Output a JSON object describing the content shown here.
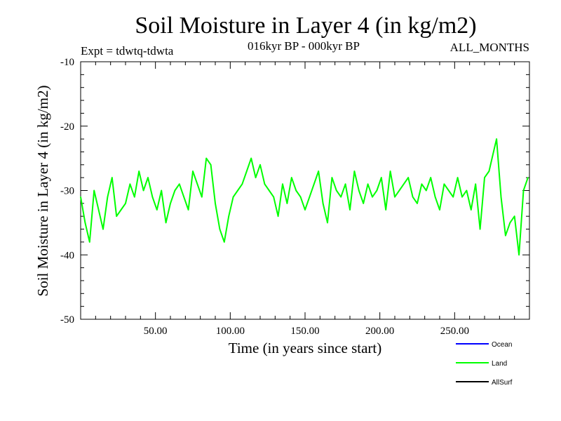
{
  "chart_data": {
    "type": "line",
    "title": "Soil Moisture in Layer 4 (in kg/m2)",
    "subtitle": "016kyr BP - 000kyr BP",
    "experiment": "Expt = tdwtq-tdwta",
    "months": "ALL_MONTHS",
    "xlabel": "Time (in years since start)",
    "ylabel": "Soil Moisture in Layer 4 (in kg/m2)",
    "xlim": [
      0,
      300
    ],
    "ylim": [
      -50,
      -10
    ],
    "x_ticks": [
      {
        "value": 50,
        "label": "50.00"
      },
      {
        "value": 100,
        "label": "100.00"
      },
      {
        "value": 150,
        "label": "150.00"
      },
      {
        "value": 200,
        "label": "200.00"
      },
      {
        "value": 250,
        "label": "250.00"
      }
    ],
    "y_ticks": [
      {
        "value": -10,
        "label": "-10"
      },
      {
        "value": -20,
        "label": "-20"
      },
      {
        "value": -30,
        "label": "-30"
      },
      {
        "value": -40,
        "label": "-40"
      },
      {
        "value": -50,
        "label": "-50"
      }
    ],
    "legend": [
      {
        "name": "Ocean",
        "color": "#0000ff"
      },
      {
        "name": "Land",
        "color": "#00ff00"
      },
      {
        "name": "AllSurf",
        "color": "#000000"
      }
    ],
    "series": [
      {
        "name": "Land",
        "color": "#00ff00",
        "x": [
          0,
          3,
          6,
          9,
          12,
          15,
          18,
          21,
          24,
          27,
          30,
          33,
          36,
          39,
          42,
          45,
          48,
          51,
          54,
          57,
          60,
          63,
          66,
          69,
          72,
          75,
          78,
          81,
          84,
          87,
          90,
          93,
          96,
          99,
          102,
          105,
          108,
          111,
          114,
          117,
          120,
          123,
          126,
          129,
          132,
          135,
          138,
          141,
          144,
          147,
          150,
          153,
          156,
          159,
          162,
          165,
          168,
          171,
          174,
          177,
          180,
          183,
          186,
          189,
          192,
          195,
          198,
          201,
          204,
          207,
          210,
          213,
          216,
          219,
          222,
          225,
          228,
          231,
          234,
          237,
          240,
          243,
          246,
          249,
          252,
          255,
          258,
          261,
          264,
          267,
          270,
          273,
          276,
          278,
          281,
          284,
          287,
          290,
          293,
          296,
          299
        ],
        "values": [
          -31,
          -35,
          -38,
          -30,
          -33,
          -36,
          -31,
          -28,
          -34,
          -33,
          -32,
          -29,
          -31,
          -27,
          -30,
          -28,
          -31,
          -33,
          -30,
          -35,
          -32,
          -30,
          -29,
          -31,
          -33,
          -27,
          -29,
          -31,
          -25,
          -26,
          -32,
          -36,
          -38,
          -34,
          -31,
          -30,
          -29,
          -27,
          -25,
          -28,
          -26,
          -29,
          -30,
          -31,
          -34,
          -29,
          -32,
          -28,
          -30,
          -31,
          -33,
          -31,
          -29,
          -27,
          -32,
          -35,
          -28,
          -30,
          -31,
          -29,
          -33,
          -27,
          -30,
          -32,
          -29,
          -31,
          -30,
          -28,
          -33,
          -27,
          -31,
          -30,
          -29,
          -28,
          -31,
          -32,
          -29,
          -30,
          -28,
          -31,
          -33,
          -29,
          -30,
          -31,
          -28,
          -31,
          -30,
          -33,
          -29,
          -36,
          -28,
          -27,
          -24,
          -22,
          -31,
          -37,
          -35,
          -34,
          -40,
          -30,
          -28
        ]
      }
    ]
  }
}
